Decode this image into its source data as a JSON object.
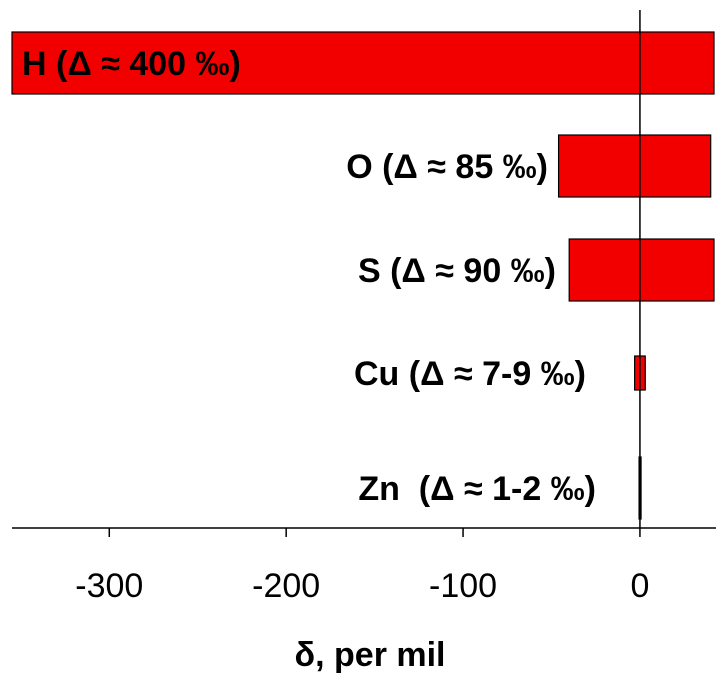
{
  "chart_data": {
    "type": "bar",
    "orientation": "horizontal",
    "categories": [
      "H (Δ ≈ 400 ‰)",
      "O (Δ ≈ 85 ‰)",
      "S (Δ ≈ 90 ‰)",
      "Cu (Δ ≈ 7-9 ‰)",
      "Zn  (Δ ≈ 1-2 ‰)"
    ],
    "ranges": [
      [
        -360,
        42
      ],
      [
        -46,
        40
      ],
      [
        -40,
        42
      ],
      [
        -3,
        3
      ],
      [
        -0.5,
        0.5
      ]
    ],
    "title": "",
    "xlabel": "δ, per mil",
    "ylabel": "",
    "xlim": [
      -355,
      43
    ],
    "xticks": [
      -300,
      -200,
      -100,
      0
    ],
    "xtick_labels": [
      "-300",
      "-200",
      "-100",
      "0"
    ],
    "reference_line_x": 0,
    "grid": false,
    "bar_color": "#f20000"
  }
}
